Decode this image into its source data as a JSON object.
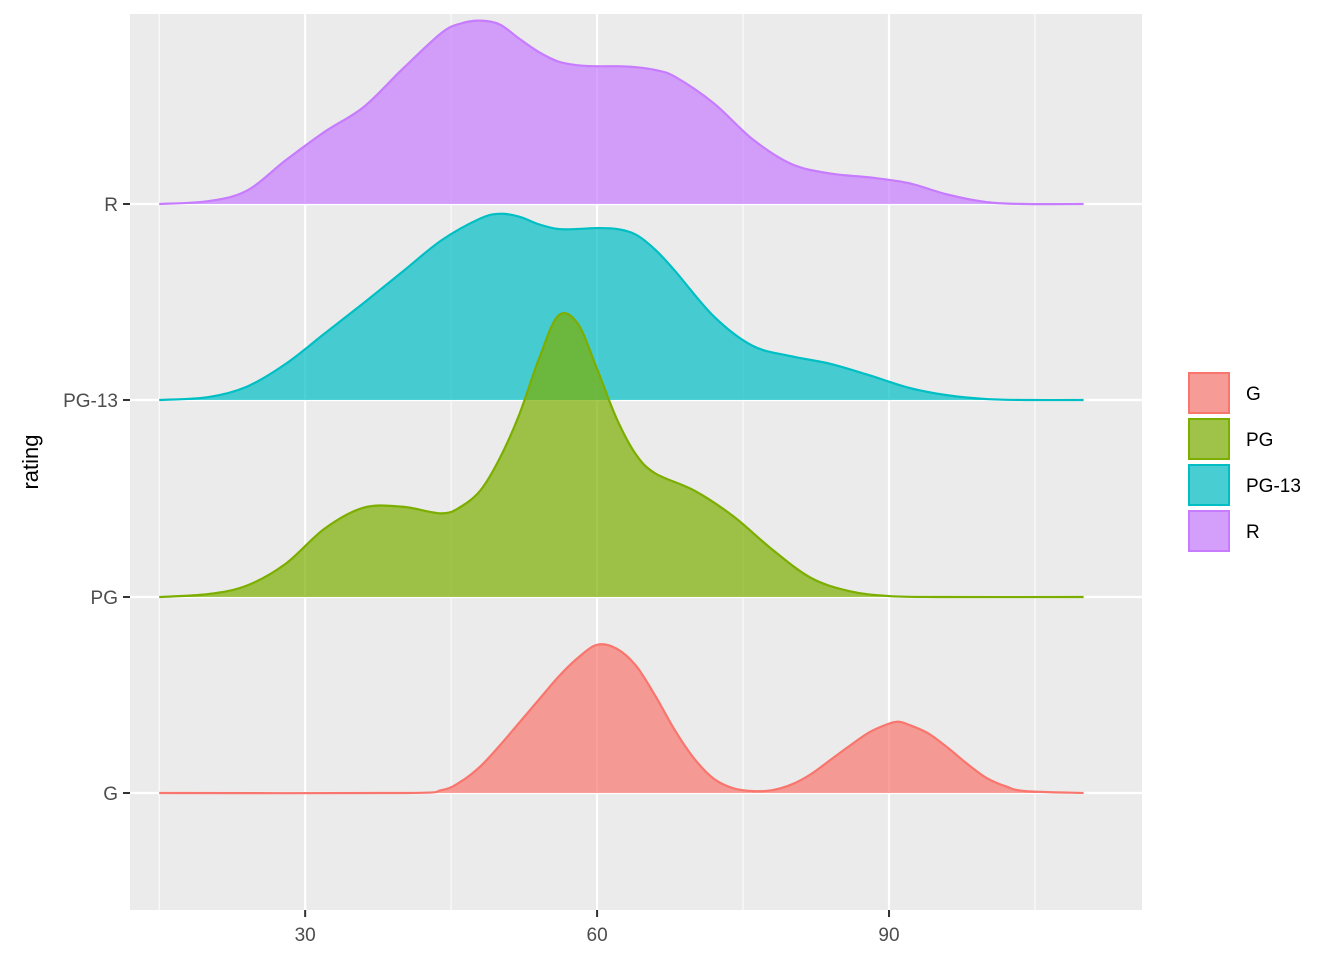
{
  "chart_data": {
    "type": "area",
    "subtype": "ridgeline-density",
    "title": "",
    "xlabel": "",
    "ylabel": "rating",
    "xlim": [
      12,
      116
    ],
    "x_ticks": [
      30,
      60,
      90
    ],
    "x_minor_gridlines": [
      15,
      45,
      75,
      105
    ],
    "categories": [
      "G",
      "PG",
      "PG-13",
      "R"
    ],
    "grid": true,
    "legend": {
      "position": "right",
      "items": [
        "G",
        "PG",
        "PG-13",
        "R"
      ]
    },
    "colors": {
      "G": "#F8766D",
      "PG": "#7CAE00",
      "PG-13": "#00BFC4",
      "R": "#C77CFF",
      "panel": "#EBEBEB"
    },
    "series": [
      {
        "name": "G",
        "x": [
          15,
          40,
          44,
          46,
          48,
          50,
          52,
          54,
          56,
          58,
          60,
          62,
          64,
          66,
          68,
          70,
          72,
          74,
          76,
          78,
          80,
          82,
          84,
          86,
          88,
          90,
          91,
          92,
          94,
          96,
          98,
          100,
          102,
          104,
          110
        ],
        "height": [
          0,
          0,
          0.03,
          0.12,
          0.28,
          0.5,
          0.74,
          0.98,
          1.22,
          1.42,
          1.56,
          1.52,
          1.34,
          1.02,
          0.66,
          0.36,
          0.15,
          0.05,
          0.02,
          0.03,
          0.09,
          0.2,
          0.35,
          0.5,
          0.64,
          0.73,
          0.75,
          0.72,
          0.63,
          0.48,
          0.31,
          0.16,
          0.07,
          0.02,
          0
        ]
      },
      {
        "name": "PG",
        "x": [
          15,
          20,
          24,
          28,
          32,
          36,
          40,
          44,
          46,
          48,
          50,
          52,
          54,
          56,
          58,
          60,
          62,
          64,
          66,
          70,
          74,
          78,
          82,
          86,
          90,
          95,
          110
        ],
        "height": [
          0,
          0.03,
          0.12,
          0.35,
          0.72,
          0.94,
          0.95,
          0.88,
          0.95,
          1.12,
          1.46,
          1.92,
          2.5,
          2.96,
          2.88,
          2.4,
          1.88,
          1.5,
          1.3,
          1.12,
          0.85,
          0.5,
          0.2,
          0.06,
          0.01,
          0,
          0
        ]
      },
      {
        "name": "PG-13",
        "x": [
          15,
          20,
          24,
          28,
          32,
          36,
          40,
          44,
          48,
          50,
          52,
          54,
          56,
          58,
          60,
          62,
          64,
          66,
          68,
          72,
          76,
          80,
          84,
          88,
          92,
          96,
          100,
          104,
          110
        ],
        "height": [
          0,
          0.03,
          0.14,
          0.38,
          0.7,
          1.02,
          1.35,
          1.68,
          1.91,
          1.96,
          1.93,
          1.85,
          1.8,
          1.8,
          1.81,
          1.8,
          1.74,
          1.58,
          1.36,
          0.88,
          0.57,
          0.46,
          0.38,
          0.26,
          0.13,
          0.05,
          0.01,
          0,
          0
        ]
      },
      {
        "name": "R",
        "x": [
          15,
          20,
          24,
          28,
          32,
          36,
          40,
          44,
          46,
          48,
          50,
          52,
          54,
          56,
          58,
          60,
          62,
          64,
          66,
          68,
          72,
          76,
          80,
          84,
          88,
          92,
          96,
          100,
          104,
          110
        ],
        "height": [
          0,
          0.03,
          0.14,
          0.46,
          0.76,
          1.02,
          1.42,
          1.8,
          1.9,
          1.93,
          1.89,
          1.74,
          1.6,
          1.5,
          1.46,
          1.45,
          1.45,
          1.44,
          1.41,
          1.34,
          1.06,
          0.68,
          0.42,
          0.32,
          0.28,
          0.22,
          0.1,
          0.02,
          0,
          0
        ]
      }
    ]
  }
}
